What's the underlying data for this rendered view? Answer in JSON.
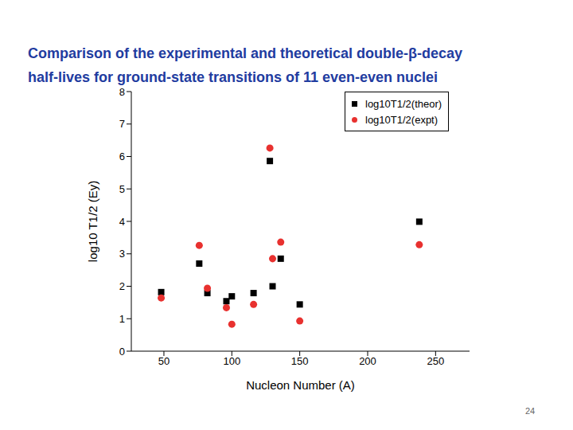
{
  "title": "Comparison of the experimental and theoretical double-β-decay\nhalf-lives for ground-state transitions of 11 even-even nuclei",
  "page_number": "24",
  "chart_data": {
    "type": "scatter",
    "x_label": "Nucleon Number (A)",
    "y_label": "log10 T1/2 (Ey)",
    "x": [
      48,
      76,
      82,
      96,
      100,
      116,
      128,
      130,
      136,
      150,
      238
    ],
    "series": [
      {
        "name": "log10T1/2(theor)",
        "color": "#000000",
        "marker": "square",
        "values": [
          1.82,
          2.7,
          1.79,
          1.54,
          1.69,
          1.79,
          5.86,
          2.0,
          2.85,
          1.44,
          3.99
        ]
      },
      {
        "name": "log10T1/2(expt)",
        "color": "#e8312f",
        "marker": "circle",
        "values": [
          1.64,
          3.26,
          1.94,
          1.34,
          0.83,
          1.44,
          6.26,
          2.85,
          3.36,
          0.93,
          3.28
        ]
      }
    ],
    "xlim": [
      26,
      275
    ],
    "xticks": [
      50,
      100,
      150,
      200,
      250
    ],
    "ylim": [
      0,
      8
    ],
    "yticks": [
      0,
      1,
      2,
      3,
      4,
      5,
      6,
      7,
      8
    ],
    "grid": false,
    "legend": "upper right"
  }
}
